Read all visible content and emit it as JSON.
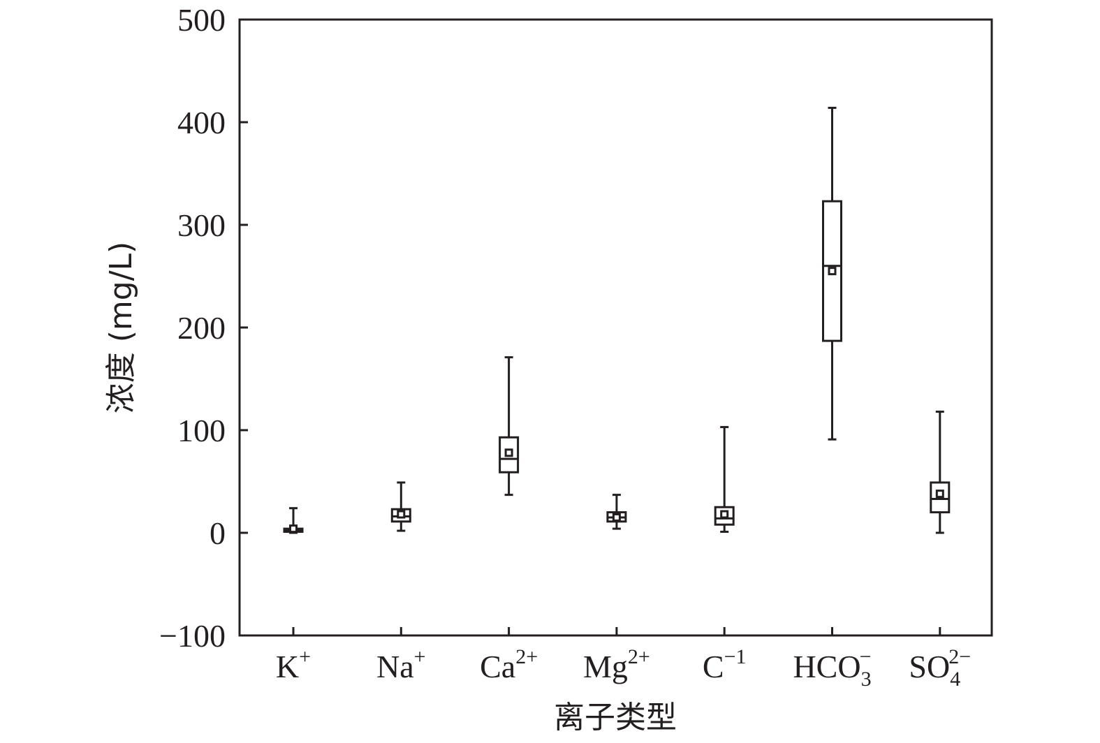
{
  "chart_data": {
    "type": "box",
    "xlabel": "离子类型",
    "ylabel": "浓度 (mg/L)",
    "ylim": [
      -100,
      500
    ],
    "yticks": [
      -100,
      0,
      100,
      200,
      300,
      400,
      500
    ],
    "legend": "none",
    "grid": false,
    "categories": [
      {
        "base": "K",
        "sub": "",
        "sup": "+"
      },
      {
        "base": "Na",
        "sub": "",
        "sup": "+"
      },
      {
        "base": "Ca",
        "sub": "",
        "sup": "2+"
      },
      {
        "base": "Mg",
        "sub": "",
        "sup": "2+"
      },
      {
        "base": "C",
        "sub": "",
        "sup": "−1"
      },
      {
        "base": "HCO",
        "sub": "3",
        "sup": "−"
      },
      {
        "base": "SO",
        "sub": "4",
        "sup": "2−"
      }
    ],
    "boxes": [
      {
        "min": 0,
        "q1": 1,
        "median": 2,
        "q3": 4,
        "max": 24,
        "mean": 4
      },
      {
        "min": 2,
        "q1": 11,
        "median": 16,
        "q3": 23,
        "max": 49,
        "mean": 18
      },
      {
        "min": 37,
        "q1": 59,
        "median": 72,
        "q3": 93,
        "max": 171,
        "mean": 78
      },
      {
        "min": 4,
        "q1": 11,
        "median": 15,
        "q3": 20,
        "max": 37,
        "mean": 15
      },
      {
        "min": 1,
        "q1": 8,
        "median": 14,
        "q3": 25,
        "max": 103,
        "mean": 18
      },
      {
        "min": 91,
        "q1": 187,
        "median": 260,
        "q3": 323,
        "max": 414,
        "mean": 255
      },
      {
        "min": 0,
        "q1": 20,
        "median": 33,
        "q3": 49,
        "max": 118,
        "mean": 38
      }
    ]
  }
}
